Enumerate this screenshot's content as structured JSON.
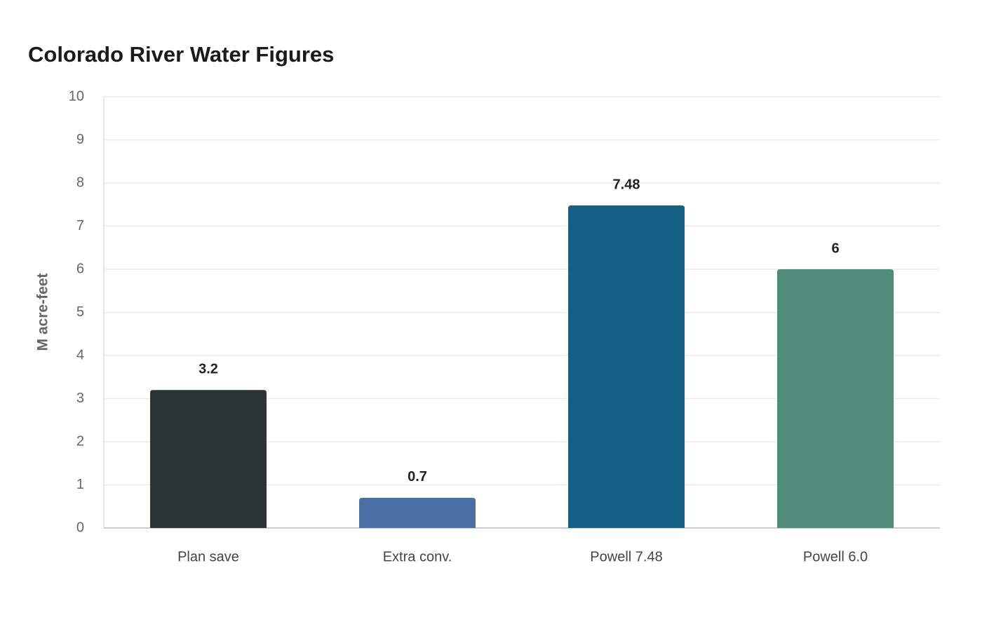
{
  "chart_data": {
    "type": "bar",
    "title": "Colorado River Water Figures",
    "y_label": "M acre-feet",
    "categories": [
      "Plan save",
      "Extra conv.",
      "Powell 7.48",
      "Powell 6.0"
    ],
    "values": [
      3.2,
      0.7,
      7.48,
      6
    ],
    "colors": [
      "#2d3436",
      "#4a6fa5",
      "#166088",
      "#4f8d7a"
    ],
    "ylim": [
      0,
      10
    ],
    "yticks": [
      0,
      1,
      2,
      3,
      4,
      5,
      6,
      7,
      8,
      9,
      10
    ],
    "grid": true
  }
}
